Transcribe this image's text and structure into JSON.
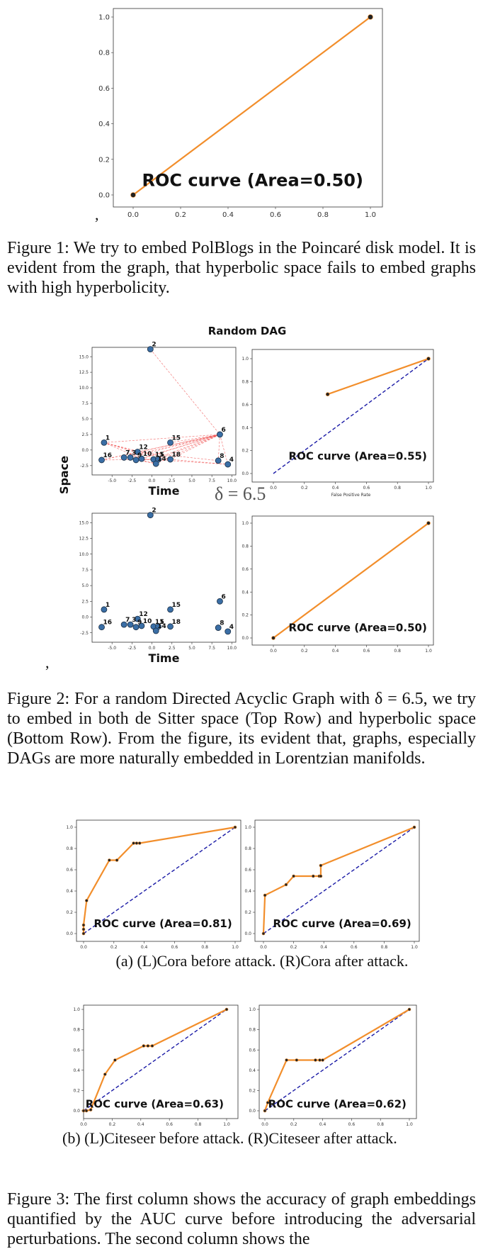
{
  "figure1": {
    "caption": "Figure 1: We try to embed PolBlogs in the Poincaré disk model. It is evident from the graph, that hyperbolic space fails to embed graphs with high hyperbolicity.",
    "comma": ","
  },
  "figure2": {
    "title": "Random DAG",
    "delta_label": "δ = 6.5",
    "space_label": "Space",
    "time_label": "Time",
    "comma": ",",
    "caption": "Figure 2: For a random Directed Acyclic Graph with δ = 6.5, we try to embed in both de Sitter space (Top Row) and hyperbolic space (Bottom Row). From the figure, its evident that, graphs, especially DAGs are more naturally embedded in Lorentzian manifolds."
  },
  "figure3": {
    "subcap_a": "(a) (L)Cora before attack. (R)Cora after attack.",
    "subcap_b": "(b) (L)Citeseer before attack. (R)Citeseer after attack.",
    "caption": "Figure 3: The first column shows the accuracy of graph embeddings quantified by the AUC curve before introducing the adversarial perturbations. The second column shows the"
  },
  "colors": {
    "roc": "#f28e2b",
    "diag": "#1a1aa6",
    "node": "#3a6ea5",
    "edge": "#ee4444"
  },
  "chart_data": [
    {
      "id": "fig1-roc",
      "type": "line",
      "title": "",
      "annotation": "ROC curve (Area=0.50)",
      "xlim": [
        0,
        1
      ],
      "ylim": [
        0,
        1
      ],
      "x_ticks": [
        "0.0",
        "0.2",
        "0.4",
        "0.6",
        "0.8",
        "1.0"
      ],
      "y_ticks": [
        "0.0",
        "0.2",
        "0.4",
        "0.6",
        "0.8",
        "1.0"
      ],
      "series": [
        {
          "x": [
            0,
            1
          ],
          "y": [
            0,
            1
          ]
        }
      ]
    },
    {
      "id": "fig2-roc-top",
      "type": "line",
      "annotation": "ROC curve (Area=0.55)",
      "xlabel": "False Positive Rate",
      "xlim": [
        0,
        1
      ],
      "ylim": [
        0,
        1
      ],
      "x_ticks": [
        "0.0",
        "0.2",
        "0.4",
        "0.6",
        "0.8",
        "1.0"
      ],
      "y_ticks": [
        "0.0",
        "0.2",
        "0.4",
        "0.6",
        "0.8",
        "1.0"
      ],
      "series": [
        {
          "x": [
            0.35,
            1
          ],
          "y": [
            0.69,
            1
          ]
        }
      ]
    },
    {
      "id": "fig2-roc-bottom",
      "type": "line",
      "annotation": "ROC curve (Area=0.50)",
      "xlim": [
        0,
        1
      ],
      "ylim": [
        0,
        1
      ],
      "x_ticks": [
        "0.0",
        "0.2",
        "0.4",
        "0.6",
        "0.8",
        "1.0"
      ],
      "y_ticks": [
        "0.0",
        "0.2",
        "0.4",
        "0.6",
        "0.8",
        "1.0"
      ],
      "series": [
        {
          "x": [
            0,
            1
          ],
          "y": [
            0,
            1
          ]
        }
      ]
    },
    {
      "id": "fig3-cora-before",
      "type": "line",
      "annotation": "ROC curve (Area=0.81)",
      "xlim": [
        0,
        1
      ],
      "ylim": [
        0,
        1
      ],
      "x_ticks": [
        "0.0",
        "0.2",
        "0.4",
        "0.6",
        "0.8",
        "1.0"
      ],
      "y_ticks": [
        "0.0",
        "0.2",
        "0.4",
        "0.6",
        "0.8",
        "1.0"
      ],
      "series": [
        {
          "x": [
            0,
            0,
            0,
            0.02,
            0.17,
            0.22,
            0.33,
            0.35,
            0.37,
            1
          ],
          "y": [
            0,
            0.04,
            0.08,
            0.31,
            0.69,
            0.69,
            0.85,
            0.85,
            0.85,
            1
          ]
        }
      ]
    },
    {
      "id": "fig3-cora-after",
      "type": "line",
      "annotation": "ROC curve (Area=0.69)",
      "xlim": [
        0,
        1
      ],
      "ylim": [
        0,
        1
      ],
      "x_ticks": [
        "0.0",
        "0.2",
        "0.4",
        "0.6",
        "0.8",
        "1.0"
      ],
      "y_ticks": [
        "0.0",
        "0.2",
        "0.4",
        "0.6",
        "0.8",
        "1.0"
      ],
      "series": [
        {
          "x": [
            0,
            0.01,
            0.15,
            0.2,
            0.33,
            0.37,
            0.38,
            0.38,
            1
          ],
          "y": [
            0,
            0.36,
            0.46,
            0.54,
            0.54,
            0.54,
            0.54,
            0.64,
            1
          ]
        }
      ]
    },
    {
      "id": "fig3-citeseer-before",
      "type": "line",
      "annotation": "ROC curve (Area=0.63)",
      "xlim": [
        0,
        1
      ],
      "ylim": [
        0,
        1
      ],
      "x_ticks": [
        "0.0",
        "0.2",
        "0.4",
        "0.6",
        "0.8",
        "1.0"
      ],
      "y_ticks": [
        "0.0",
        "0.2",
        "0.4",
        "0.6",
        "0.8",
        "1.0"
      ],
      "series": [
        {
          "x": [
            0,
            0.02,
            0.05,
            0.15,
            0.22,
            0.42,
            0.45,
            0.48,
            1
          ],
          "y": [
            0,
            0,
            0.01,
            0.36,
            0.5,
            0.64,
            0.64,
            0.64,
            1
          ]
        }
      ]
    },
    {
      "id": "fig3-citeseer-after",
      "type": "line",
      "annotation": "ROC curve (Area=0.62)",
      "xlim": [
        0,
        1
      ],
      "ylim": [
        0,
        1
      ],
      "x_ticks": [
        "0.0",
        "0.2",
        "0.4",
        "0.6",
        "0.8",
        "1.0"
      ],
      "y_ticks": [
        "0.0",
        "0.2",
        "0.4",
        "0.6",
        "0.8",
        "1.0"
      ],
      "series": [
        {
          "x": [
            0,
            0.02,
            0.15,
            0.22,
            0.35,
            0.38,
            0.4,
            1
          ],
          "y": [
            0,
            0.08,
            0.5,
            0.5,
            0.5,
            0.5,
            0.5,
            1
          ]
        }
      ]
    },
    {
      "id": "fig2-scatter-top",
      "type": "scatter",
      "xlabel": "Time",
      "ylabel": "Space",
      "xlim": [
        -7.5,
        10.5
      ],
      "ylim": [
        -4,
        16.5
      ],
      "x_ticks": [
        "-5.0",
        "-2.5",
        "0.0",
        "2.5",
        "5.0",
        "7.5",
        "10.0"
      ],
      "y_ticks": [
        "-2.5",
        "0.0",
        "2.5",
        "5.0",
        "7.5",
        "10.0",
        "12.5",
        "15.0"
      ],
      "nodes": [
        {
          "label": "2",
          "x": -0.2,
          "y": 16.2
        },
        {
          "label": "1",
          "x": -6.0,
          "y": 1.2
        },
        {
          "label": "16",
          "x": -6.3,
          "y": -1.6
        },
        {
          "label": "15",
          "x": 2.3,
          "y": 1.2
        },
        {
          "label": "6",
          "x": 8.5,
          "y": 2.5
        },
        {
          "label": "12",
          "x": -1.8,
          "y": -0.3
        },
        {
          "label": "7",
          "x": -3.5,
          "y": -1.2
        },
        {
          "label": "3",
          "x": -2.7,
          "y": -1.2
        },
        {
          "label": "10",
          "x": -1.3,
          "y": -1.4
        },
        {
          "label": "9",
          "x": -2.0,
          "y": -1.6
        },
        {
          "label": "11",
          "x": 0.2,
          "y": -1.5
        },
        {
          "label": "5",
          "x": 0.8,
          "y": -1.5
        },
        {
          "label": "14",
          "x": 0.5,
          "y": -2.2
        },
        {
          "label": "18",
          "x": 2.3,
          "y": -1.5
        },
        {
          "label": "8",
          "x": 8.3,
          "y": -1.7
        },
        {
          "label": "4",
          "x": 9.5,
          "y": -2.3
        }
      ],
      "edges": [
        [
          "2",
          "6"
        ],
        [
          "1",
          "6"
        ],
        [
          "1",
          "12"
        ],
        [
          "1",
          "10"
        ],
        [
          "16",
          "6"
        ],
        [
          "16",
          "12"
        ],
        [
          "16",
          "5"
        ],
        [
          "7",
          "6"
        ],
        [
          "3",
          "6"
        ],
        [
          "12",
          "6"
        ],
        [
          "10",
          "6"
        ],
        [
          "9",
          "6"
        ],
        [
          "11",
          "6"
        ],
        [
          "5",
          "6"
        ],
        [
          "14",
          "6"
        ],
        [
          "18",
          "6"
        ],
        [
          "15",
          "6"
        ],
        [
          "6",
          "8"
        ],
        [
          "6",
          "4"
        ],
        [
          "12",
          "8"
        ],
        [
          "10",
          "4"
        ],
        [
          "18",
          "4"
        ],
        [
          "9",
          "18"
        ],
        [
          "3",
          "14"
        ],
        [
          "7",
          "14"
        ],
        [
          "1",
          "5"
        ],
        [
          "1",
          "18"
        ]
      ]
    },
    {
      "id": "fig2-scatter-bottom",
      "type": "scatter",
      "xlabel": "Time",
      "xlim": [
        -7.5,
        10.5
      ],
      "ylim": [
        -4,
        16.5
      ],
      "x_ticks": [
        "-5.0",
        "-2.5",
        "0.0",
        "2.5",
        "5.0",
        "7.5",
        "10.0"
      ],
      "y_ticks": [
        "-2.5",
        "0.0",
        "2.5",
        "5.0",
        "7.5",
        "10.0",
        "12.5",
        "15.0"
      ],
      "nodes": [
        {
          "label": "2",
          "x": -0.2,
          "y": 16.2
        },
        {
          "label": "1",
          "x": -6.0,
          "y": 1.2
        },
        {
          "label": "16",
          "x": -6.3,
          "y": -1.6
        },
        {
          "label": "15",
          "x": 2.3,
          "y": 1.2
        },
        {
          "label": "6",
          "x": 8.5,
          "y": 2.5
        },
        {
          "label": "12",
          "x": -1.8,
          "y": -0.3
        },
        {
          "label": "7",
          "x": -3.5,
          "y": -1.2
        },
        {
          "label": "3",
          "x": -2.7,
          "y": -1.2
        },
        {
          "label": "10",
          "x": -1.3,
          "y": -1.4
        },
        {
          "label": "9",
          "x": -2.0,
          "y": -1.6
        },
        {
          "label": "11",
          "x": 0.2,
          "y": -1.5
        },
        {
          "label": "5",
          "x": 0.8,
          "y": -1.5
        },
        {
          "label": "14",
          "x": 0.5,
          "y": -2.2
        },
        {
          "label": "18",
          "x": 2.3,
          "y": -1.5
        },
        {
          "label": "8",
          "x": 8.3,
          "y": -1.7
        },
        {
          "label": "4",
          "x": 9.5,
          "y": -2.3
        }
      ],
      "edges": []
    }
  ]
}
